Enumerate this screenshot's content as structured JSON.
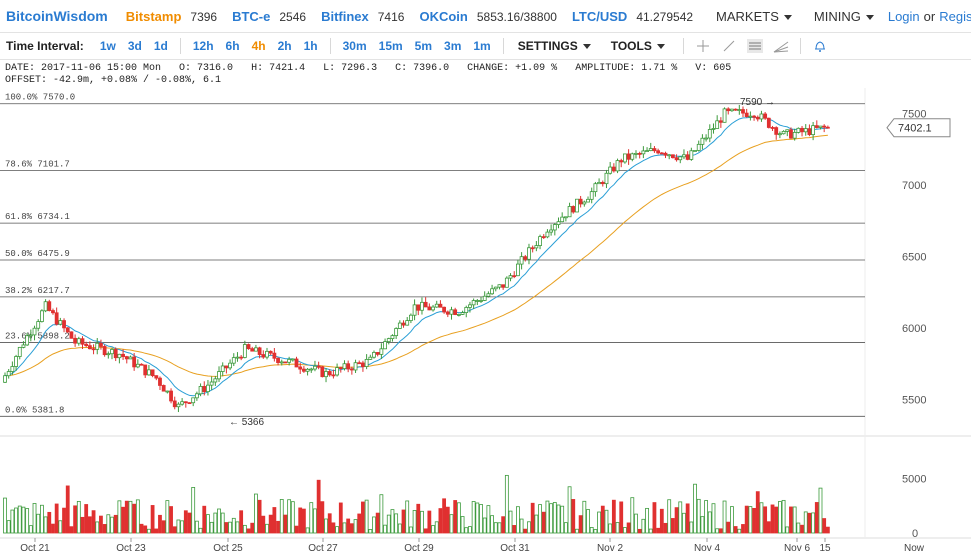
{
  "topbar": {
    "brand": "BitcoinWisdom",
    "exchanges": [
      {
        "name": "Bitstamp",
        "price": "7396",
        "color": "#f08c00"
      },
      {
        "name": "BTC-e",
        "price": "2546",
        "color": "#2a7bd1"
      },
      {
        "name": "Bitfinex",
        "price": "7416",
        "color": "#2a7bd1"
      },
      {
        "name": "OKCoin",
        "price": "5853.16/38800",
        "color": "#2a7bd1"
      },
      {
        "name": "LTC/USD",
        "price": "41.279542",
        "color": "#2a7bd1"
      }
    ],
    "markets": "MARKETS",
    "mining": "MINING",
    "login": "Login",
    "or": "or",
    "register": "Register"
  },
  "toolbar": {
    "label": "Time Interval:",
    "intervals": [
      "1w",
      "3d",
      "1d",
      "12h",
      "6h",
      "4h",
      "2h",
      "1h",
      "30m",
      "15m",
      "5m",
      "3m",
      "1m"
    ],
    "active_interval": "4h",
    "settings": "SETTINGS",
    "tools": "TOOLS",
    "tool_icons": [
      "crosshair-icon",
      "line-icon",
      "hlines-icon",
      "fan-icon",
      "bell-icon"
    ]
  },
  "info": {
    "date": "DATE: 2017-11-06 15:00 Mon",
    "open": "O: 7316.0",
    "high": "H: 7421.4",
    "low": "L: 7296.3",
    "close": "C: 7396.0",
    "change": "CHANGE: +1.09 %",
    "amplitude": "AMPLITUDE: 1.71 %",
    "volume": "V: 605",
    "offset": "OFFSET: -42.9m, +0.08% / -0.08%, 6.1"
  },
  "chart_data": {
    "type": "candlestick",
    "price_axis": {
      "ticks": [
        5500,
        6000,
        6500,
        7000,
        7500
      ],
      "range": [
        5300,
        7680
      ]
    },
    "volume_axis": {
      "ticks": [
        0,
        5000
      ],
      "range": [
        0,
        8500
      ]
    },
    "x_labels": [
      "Oct 21",
      "Oct 23",
      "Oct 25",
      "Oct 27",
      "Oct 29",
      "Oct 31",
      "Nov 2",
      "Nov 4",
      "Nov 6",
      "15",
      "Now"
    ],
    "current_price": "7402.1",
    "annotations": {
      "high": "7590",
      "low": "5366"
    },
    "fibonacci": [
      {
        "label": "100.0% 7570.0",
        "price": 7570.0
      },
      {
        "label": "78.6% 7101.7",
        "price": 7101.7
      },
      {
        "label": "61.8% 6734.1",
        "price": 6734.1
      },
      {
        "label": "50.0% 6475.9",
        "price": 6475.9
      },
      {
        "label": "38.2% 6217.7",
        "price": 6217.7
      },
      {
        "label": "23.6% 5898.2",
        "price": 5898.2
      },
      {
        "label": "0.0% 5381.8",
        "price": 5381.8
      }
    ],
    "colors": {
      "up": "#3c9a3c",
      "down": "#e03030",
      "ema_short": "#2a9fd6",
      "ema_long": "#e8a020",
      "fib": "#555555"
    }
  }
}
